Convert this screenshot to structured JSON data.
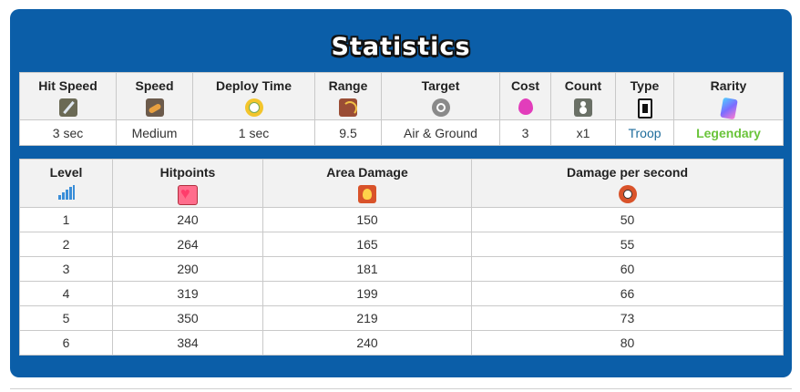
{
  "title": "Statistics",
  "stats": {
    "headers": [
      "Hit Speed",
      "Speed",
      "Deploy Time",
      "Range",
      "Target",
      "Cost",
      "Count",
      "Type",
      "Rarity"
    ],
    "icons": [
      "sword-icon",
      "boot-icon",
      "clock-icon",
      "bow-icon",
      "crosshair-icon",
      "elixir-drop-icon",
      "troop-count-icon",
      "troop-card-icon",
      "rarity-cards-icon"
    ],
    "values": [
      "3 sec",
      "Medium",
      "1 sec",
      "9.5",
      "Air & Ground",
      "3",
      "x1",
      "Troop",
      "Legendary"
    ]
  },
  "levels": {
    "headers": [
      "Level",
      "Hitpoints",
      "Area Damage",
      "Damage per second"
    ],
    "icons": [
      "signal-bars-icon",
      "heart-icon",
      "fire-icon",
      "fire-clock-icon"
    ],
    "rows": [
      [
        "1",
        "240",
        "150",
        "50"
      ],
      [
        "2",
        "264",
        "165",
        "55"
      ],
      [
        "3",
        "290",
        "181",
        "60"
      ],
      [
        "4",
        "319",
        "199",
        "66"
      ],
      [
        "5",
        "350",
        "219",
        "73"
      ],
      [
        "6",
        "384",
        "240",
        "80"
      ]
    ]
  },
  "colors": {
    "panel": "#0b5ea8",
    "troop": "#1f6d9c",
    "legendary": "#6ac43a"
  }
}
